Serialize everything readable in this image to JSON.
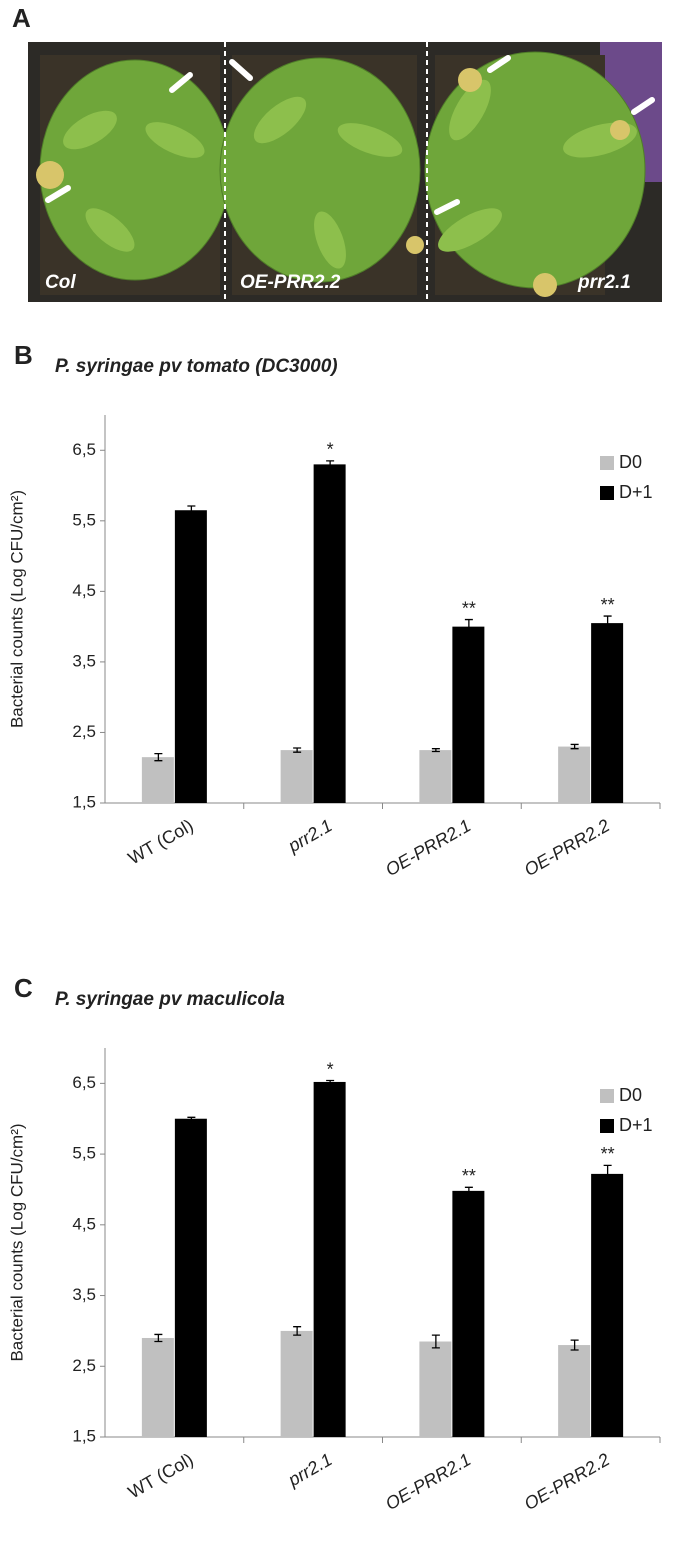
{
  "panel_a": {
    "panel_label": "A",
    "labels": [
      "Col",
      "OE-PRR2.2",
      "prr2.1"
    ]
  },
  "chart_data": [
    {
      "type": "bar",
      "panel_label": "B",
      "title": "P. syringae pv tomato (DC3000)",
      "y_label": "Bacterial counts (Log CFU/cm²)",
      "categories": [
        "WT (Col)",
        "prr2.1",
        "OE-PRR2.1",
        "OE-PRR2.2"
      ],
      "series": [
        {
          "name": "D0",
          "color": "#c0c0c0",
          "values": [
            2.15,
            2.25,
            2.25,
            2.3
          ],
          "errors": [
            0.05,
            0.03,
            0.02,
            0.03
          ]
        },
        {
          "name": "D+1",
          "color": "#000000",
          "values": [
            5.65,
            6.3,
            4.0,
            4.05
          ],
          "errors": [
            0.06,
            0.05,
            0.1,
            0.1
          ],
          "significance": [
            null,
            "*",
            "**",
            "**"
          ]
        }
      ],
      "ylim": [
        1.5,
        7.0
      ],
      "yticks": [
        {
          "value": 1.5,
          "label": "1,5"
        },
        {
          "value": 2.5,
          "label": "2,5"
        },
        {
          "value": 3.5,
          "label": "3,5"
        },
        {
          "value": 4.5,
          "label": "4,5"
        },
        {
          "value": 5.5,
          "label": "5,5"
        },
        {
          "value": 6.5,
          "label": "6,5"
        }
      ],
      "grid": false,
      "legend": "upper right"
    },
    {
      "type": "bar",
      "panel_label": "C",
      "title": "P. syringae pv maculicola",
      "y_label": "Bacterial counts (Log CFU/cm²)",
      "categories": [
        "WT (Col)",
        "prr2.1",
        "OE-PRR2.1",
        "OE-PRR2.2"
      ],
      "series": [
        {
          "name": "D0",
          "color": "#c0c0c0",
          "values": [
            2.9,
            3.0,
            2.85,
            2.8
          ],
          "errors": [
            0.05,
            0.06,
            0.09,
            0.07
          ]
        },
        {
          "name": "D+1",
          "color": "#000000",
          "values": [
            6.0,
            6.52,
            4.98,
            5.22
          ],
          "errors": [
            0.02,
            0.02,
            0.05,
            0.12
          ],
          "significance": [
            null,
            "*",
            "**",
            "**"
          ]
        }
      ],
      "ylim": [
        1.5,
        7.0
      ],
      "yticks": [
        {
          "value": 1.5,
          "label": "1,5"
        },
        {
          "value": 2.5,
          "label": "2,5"
        },
        {
          "value": 3.5,
          "label": "3,5"
        },
        {
          "value": 4.5,
          "label": "4,5"
        },
        {
          "value": 5.5,
          "label": "5,5"
        },
        {
          "value": 6.5,
          "label": "6,5"
        }
      ],
      "grid": false,
      "legend": "upper right"
    }
  ]
}
